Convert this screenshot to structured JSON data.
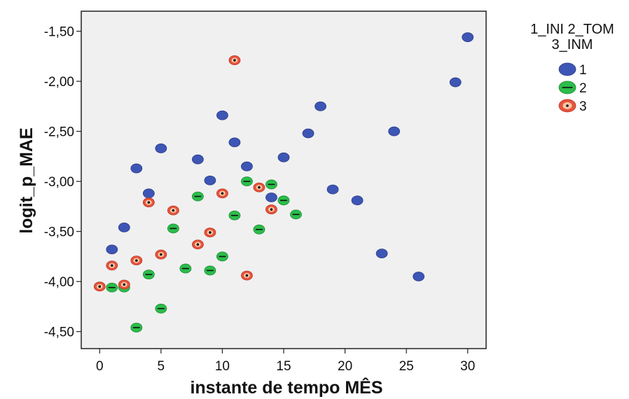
{
  "chart_data": {
    "type": "scatter",
    "xlabel": "instante de tempo MÊS",
    "ylabel": "logit_p_MAE",
    "xlim": [
      -1.5,
      31.5
    ],
    "ylim": [
      -4.67,
      -1.3
    ],
    "x_ticks": [
      0,
      5,
      10,
      15,
      20,
      25,
      30
    ],
    "x_tick_labels": [
      "0",
      "5",
      "10",
      "15",
      "20",
      "25",
      "30"
    ],
    "y_ticks": [
      -1.5,
      -2.0,
      -2.5,
      -3.0,
      -3.5,
      -4.0,
      -4.5
    ],
    "y_tick_labels": [
      "-1,50",
      "-2,00",
      "-2,50",
      "-3,00",
      "-3,50",
      "-4,00",
      "-4,50"
    ],
    "grid": false,
    "plot_background": "#f0f0f0",
    "legend": {
      "title_line1": "1_INI 2_TOM",
      "title_line2": "3_INM",
      "placement": "right"
    },
    "series": [
      {
        "name": "1",
        "marker": "filled-ellipse",
        "color": "#3d55b4",
        "points": [
          {
            "x": 1,
            "y": -3.68
          },
          {
            "x": 2,
            "y": -3.46
          },
          {
            "x": 3,
            "y": -2.87
          },
          {
            "x": 4,
            "y": -3.12
          },
          {
            "x": 5,
            "y": -2.67
          },
          {
            "x": 8,
            "y": -2.78
          },
          {
            "x": 9,
            "y": -2.99
          },
          {
            "x": 10,
            "y": -2.34
          },
          {
            "x": 11,
            "y": -2.61
          },
          {
            "x": 12,
            "y": -2.85
          },
          {
            "x": 14,
            "y": -3.16
          },
          {
            "x": 15,
            "y": -2.76
          },
          {
            "x": 17,
            "y": -2.52
          },
          {
            "x": 18,
            "y": -2.25
          },
          {
            "x": 19,
            "y": -3.08
          },
          {
            "x": 21,
            "y": -3.19
          },
          {
            "x": 23,
            "y": -3.72
          },
          {
            "x": 24,
            "y": -2.5
          },
          {
            "x": 26,
            "y": -3.95
          },
          {
            "x": 29,
            "y": -2.01
          },
          {
            "x": 30,
            "y": -1.56
          }
        ]
      },
      {
        "name": "2",
        "marker": "ellipse-with-dash",
        "color": "#2bbd4a",
        "points": [
          {
            "x": 1,
            "y": -4.06
          },
          {
            "x": 2,
            "y": -4.06
          },
          {
            "x": 3,
            "y": -4.46
          },
          {
            "x": 4,
            "y": -3.93
          },
          {
            "x": 5,
            "y": -4.27
          },
          {
            "x": 6,
            "y": -3.47
          },
          {
            "x": 7,
            "y": -3.87
          },
          {
            "x": 8,
            "y": -3.15
          },
          {
            "x": 9,
            "y": -3.89
          },
          {
            "x": 10,
            "y": -3.75
          },
          {
            "x": 11,
            "y": -3.34
          },
          {
            "x": 12,
            "y": -3.0
          },
          {
            "x": 13,
            "y": -3.48
          },
          {
            "x": 14,
            "y": -3.03
          },
          {
            "x": 15,
            "y": -3.19
          },
          {
            "x": 16,
            "y": -3.33
          }
        ]
      },
      {
        "name": "3",
        "marker": "ellipse-with-dot",
        "color": "#e8533c",
        "points": [
          {
            "x": 0,
            "y": -4.05
          },
          {
            "x": 1,
            "y": -3.84
          },
          {
            "x": 2,
            "y": -4.03
          },
          {
            "x": 3,
            "y": -3.79
          },
          {
            "x": 4,
            "y": -3.21
          },
          {
            "x": 5,
            "y": -3.73
          },
          {
            "x": 6,
            "y": -3.29
          },
          {
            "x": 8,
            "y": -3.63
          },
          {
            "x": 9,
            "y": -3.51
          },
          {
            "x": 10,
            "y": -3.12
          },
          {
            "x": 11,
            "y": -1.79
          },
          {
            "x": 12,
            "y": -3.94
          },
          {
            "x": 13,
            "y": -3.06
          },
          {
            "x": 14,
            "y": -3.28
          }
        ]
      }
    ]
  }
}
